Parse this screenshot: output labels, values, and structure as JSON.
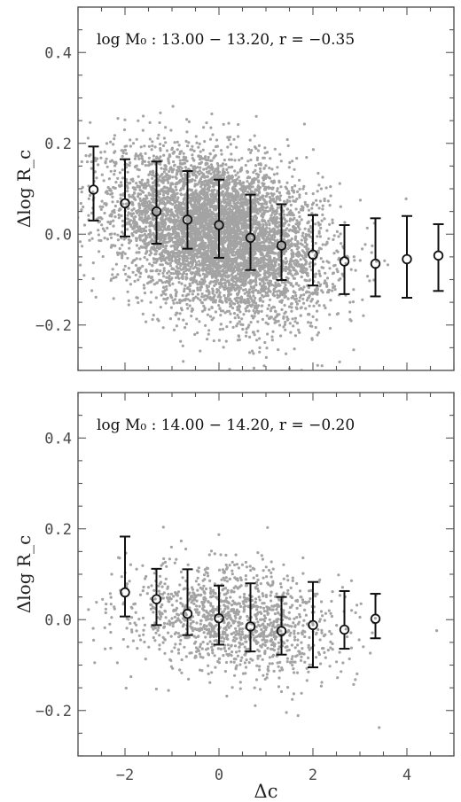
{
  "chart_data": [
    {
      "type": "scatter",
      "title": "",
      "annotation": "log M₀ : 13.00 − 13.20,   r = −0.35",
      "xlabel": "",
      "ylabel": "Δlog R_c",
      "xlim": [
        -3.0,
        5.0
      ],
      "ylim": [
        -0.3,
        0.5
      ],
      "xticks": [
        -2,
        0,
        2,
        4
      ],
      "yticks": [
        -0.2,
        0.0,
        0.2,
        0.4
      ],
      "xticklabels": [
        "",
        "",
        "",
        ""
      ],
      "yticklabels": [
        "−0.2",
        "0.0",
        "0.2",
        "0.4"
      ],
      "grid": false,
      "scatter_cloud": {
        "n_points": 6000,
        "x_mean": 0.0,
        "x_std": 1.1,
        "y_mean": 0.0,
        "y_std": 0.085,
        "slope": -0.027
      },
      "binned": {
        "x": [
          -2.67,
          -2.0,
          -1.33,
          -0.67,
          0.0,
          0.67,
          1.33,
          2.0,
          2.67,
          3.33,
          4.0,
          4.67
        ],
        "y": [
          0.098,
          0.068,
          0.05,
          0.032,
          0.02,
          -0.008,
          -0.025,
          -0.045,
          -0.06,
          -0.065,
          -0.055,
          -0.047
        ],
        "err_low": [
          0.068,
          0.073,
          0.071,
          0.064,
          0.072,
          0.071,
          0.076,
          0.068,
          0.072,
          0.072,
          0.085,
          0.078
        ],
        "err_high": [
          0.095,
          0.097,
          0.11,
          0.107,
          0.1,
          0.095,
          0.091,
          0.087,
          0.08,
          0.1,
          0.095,
          0.069
        ]
      }
    },
    {
      "type": "scatter",
      "title": "",
      "annotation": "log M₀ : 14.00 − 14.20,   r = −0.20",
      "xlabel": "Δc",
      "ylabel": "Δlog R_c",
      "xlim": [
        -3.0,
        5.0
      ],
      "ylim": [
        -0.3,
        0.5
      ],
      "xticks": [
        -2,
        0,
        2,
        4
      ],
      "yticks": [
        -0.2,
        0.0,
        0.2,
        0.4
      ],
      "xticklabels": [
        "−2",
        "0",
        "2",
        "4"
      ],
      "yticklabels": [
        "−0.2",
        "0.0",
        "0.2",
        "0.4"
      ],
      "grid": false,
      "scatter_cloud": {
        "n_points": 1300,
        "x_mean": 0.3,
        "x_std": 1.15,
        "y_mean": 0.0,
        "y_std": 0.06,
        "slope": -0.012
      },
      "binned": {
        "x": [
          -2.0,
          -1.33,
          -0.67,
          0.0,
          0.67,
          1.33,
          2.0,
          2.67,
          3.33
        ],
        "y": [
          0.06,
          0.045,
          0.013,
          0.003,
          -0.015,
          -0.025,
          -0.012,
          -0.022,
          0.002
        ],
        "err_low": [
          0.053,
          0.057,
          0.047,
          0.058,
          0.055,
          0.052,
          0.093,
          0.042,
          0.043
        ],
        "err_high": [
          0.123,
          0.067,
          0.098,
          0.072,
          0.095,
          0.075,
          0.095,
          0.085,
          0.055
        ]
      }
    }
  ]
}
